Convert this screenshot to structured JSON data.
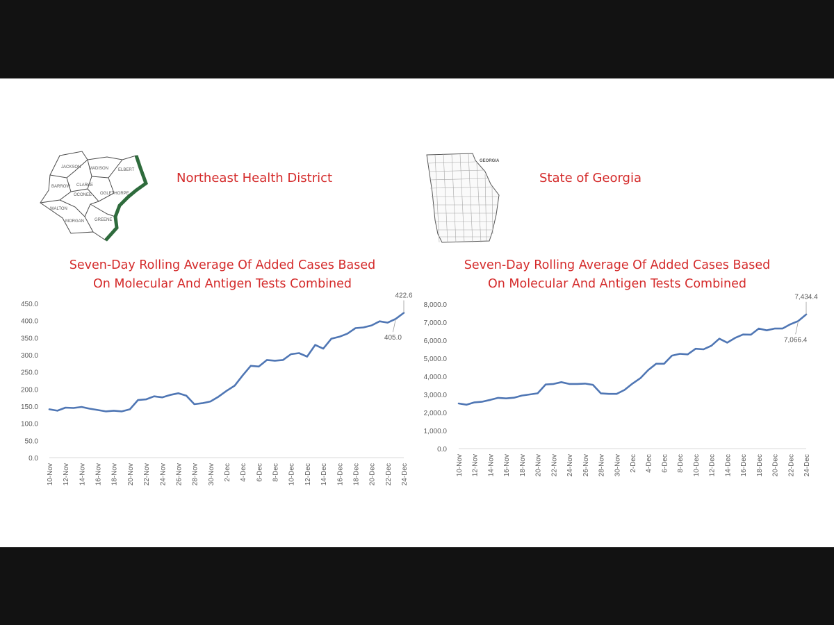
{
  "left": {
    "heading": "Northeast Health District",
    "map_counties": [
      "JACKSON",
      "MADISON",
      "ELBERT",
      "BARROW",
      "CLARKE",
      "OCONEE",
      "OGLETHORPE",
      "WALTON",
      "MORGAN",
      "GREENE"
    ]
  },
  "right": {
    "heading": "State of Georgia",
    "map_label": "GEORGIA"
  },
  "chart_data": [
    {
      "type": "line",
      "title_line1": "Seven-Day Rolling Average Of  Added Cases Based",
      "title_line2": "On Molecular And Antigen Tests Combined",
      "x_tick_labels": [
        "10-Nov",
        "12-Nov",
        "14-Nov",
        "16-Nov",
        "18-Nov",
        "20-Nov",
        "22-Nov",
        "24-Nov",
        "26-Nov",
        "28-Nov",
        "30-Nov",
        "2-Dec",
        "4-Dec",
        "6-Dec",
        "8-Dec",
        "10-Dec",
        "12-Dec",
        "14-Dec",
        "16-Dec",
        "18-Dec",
        "20-Dec",
        "22-Dec",
        "24-Dec"
      ],
      "y_tick_labels": [
        "0.0",
        "50.0",
        "100.0",
        "150.0",
        "200.0",
        "250.0",
        "300.0",
        "350.0",
        "400.0",
        "450.0"
      ],
      "ylim": [
        0,
        450
      ],
      "color": "#4f76b4",
      "values": [
        141,
        137,
        146,
        145,
        148,
        143,
        139,
        135,
        137,
        135,
        141,
        168,
        170,
        179,
        176,
        183,
        188,
        181,
        156,
        159,
        164,
        178,
        195,
        210,
        240,
        268,
        266,
        285,
        283,
        285,
        302,
        305,
        295,
        329,
        318,
        347,
        353,
        362,
        378,
        380,
        386,
        398,
        394,
        405,
        422.6
      ],
      "annotations": [
        {
          "index": 44,
          "text": "422.6"
        },
        {
          "index": 43,
          "text": "405.0"
        }
      ]
    },
    {
      "type": "line",
      "title_line1": "Seven-Day Rolling Average Of  Added Cases Based",
      "title_line2": "On Molecular And Antigen Tests Combined",
      "x_tick_labels": [
        "10-Nov",
        "12-Nov",
        "14-Nov",
        "16-Nov",
        "18-Nov",
        "20-Nov",
        "22-Nov",
        "24-Nov",
        "26-Nov",
        "28-Nov",
        "30-Nov",
        "2-Dec",
        "4-Dec",
        "6-Dec",
        "8-Dec",
        "10-Dec",
        "12-Dec",
        "14-Dec",
        "16-Dec",
        "18-Dec",
        "20-Dec",
        "22-Dec",
        "24-Dec"
      ],
      "y_tick_labels": [
        "0.0",
        "1,000.0",
        "2,000.0",
        "3,000.0",
        "4,000.0",
        "5,000.0",
        "6,000.0",
        "7,000.0",
        "8,000.0"
      ],
      "ylim": [
        0,
        8000
      ],
      "color": "#4f76b4",
      "values": [
        2500,
        2430,
        2560,
        2600,
        2700,
        2810,
        2780,
        2820,
        2940,
        3000,
        3060,
        3550,
        3580,
        3680,
        3580,
        3580,
        3600,
        3530,
        3060,
        3030,
        3030,
        3250,
        3600,
        3900,
        4350,
        4700,
        4700,
        5150,
        5250,
        5220,
        5530,
        5500,
        5700,
        6090,
        5870,
        6130,
        6320,
        6310,
        6650,
        6550,
        6650,
        6650,
        6890,
        7066.4,
        7434.4
      ],
      "annotations": [
        {
          "index": 44,
          "text": "7,434.4"
        },
        {
          "index": 43,
          "text": "7,066.4"
        }
      ]
    }
  ]
}
